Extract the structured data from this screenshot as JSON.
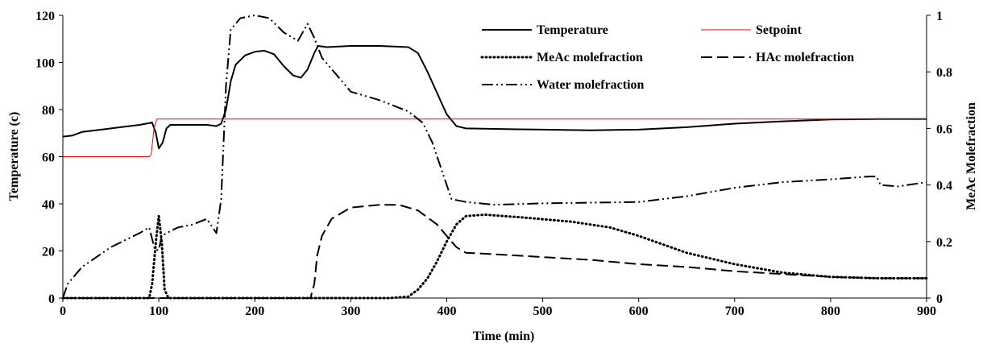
{
  "chart_data": {
    "type": "line",
    "xlabel": "Time (min)",
    "ylabel_left": "Temperature (c)",
    "ylabel_right": "MeAc Molefraction",
    "xlim": [
      0,
      900
    ],
    "ylim_left": [
      0,
      120
    ],
    "ylim_right": [
      0,
      1
    ],
    "x_ticks": [
      "0",
      "100",
      "200",
      "300",
      "400",
      "500",
      "600",
      "700",
      "800",
      "900"
    ],
    "y_left_ticks": [
      "0",
      "20",
      "40",
      "60",
      "80",
      "100",
      "120"
    ],
    "y_right_ticks": [
      "0",
      "0.2",
      "0.4",
      "0.6",
      "0.8",
      "1"
    ],
    "grid": false,
    "legend_position": "top-right",
    "series": [
      {
        "name": "Temperature",
        "axis": "left",
        "color": "#000000",
        "dash": "solid",
        "points": [
          [
            0,
            68.5
          ],
          [
            10,
            69
          ],
          [
            20,
            70.5
          ],
          [
            40,
            71.5
          ],
          [
            60,
            72.5
          ],
          [
            80,
            73.5
          ],
          [
            93,
            74.5
          ],
          [
            97,
            70
          ],
          [
            100,
            63.5
          ],
          [
            104,
            66
          ],
          [
            108,
            72
          ],
          [
            112,
            73.5
          ],
          [
            130,
            73.5
          ],
          [
            150,
            73.5
          ],
          [
            160,
            73
          ],
          [
            165,
            74
          ],
          [
            170,
            80
          ],
          [
            175,
            92
          ],
          [
            180,
            99
          ],
          [
            190,
            103
          ],
          [
            200,
            104.5
          ],
          [
            210,
            105
          ],
          [
            220,
            103.5
          ],
          [
            230,
            98.5
          ],
          [
            240,
            94.5
          ],
          [
            248,
            93.5
          ],
          [
            255,
            97
          ],
          [
            262,
            104
          ],
          [
            266,
            107
          ],
          [
            275,
            106.5
          ],
          [
            300,
            107
          ],
          [
            330,
            107
          ],
          [
            360,
            106.5
          ],
          [
            370,
            104
          ],
          [
            380,
            96
          ],
          [
            390,
            87
          ],
          [
            400,
            78
          ],
          [
            410,
            73
          ],
          [
            420,
            72
          ],
          [
            450,
            71.8
          ],
          [
            500,
            71.5
          ],
          [
            550,
            71.2
          ],
          [
            600,
            71.5
          ],
          [
            650,
            72.5
          ],
          [
            700,
            74
          ],
          [
            750,
            75
          ],
          [
            800,
            75.8
          ],
          [
            850,
            76
          ],
          [
            900,
            76
          ]
        ]
      },
      {
        "name": "Setpoint",
        "axis": "left",
        "color": "#ff0000",
        "dash": "solid",
        "points": [
          [
            0,
            60
          ],
          [
            90,
            60
          ],
          [
            92,
            61
          ],
          [
            95,
            72
          ],
          [
            98,
            76
          ],
          [
            900,
            76
          ]
        ]
      },
      {
        "name": "MeAc molefraction",
        "axis": "right",
        "color": "#000000",
        "dash": "dotted",
        "points": [
          [
            0,
            0
          ],
          [
            90,
            0
          ],
          [
            93,
            0.05
          ],
          [
            97,
            0.2
          ],
          [
            100,
            0.29
          ],
          [
            103,
            0.2
          ],
          [
            106,
            0.03
          ],
          [
            110,
            0
          ],
          [
            340,
            0
          ],
          [
            360,
            0.005
          ],
          [
            370,
            0.03
          ],
          [
            380,
            0.07
          ],
          [
            390,
            0.13
          ],
          [
            400,
            0.2
          ],
          [
            410,
            0.26
          ],
          [
            420,
            0.29
          ],
          [
            440,
            0.295
          ],
          [
            480,
            0.285
          ],
          [
            530,
            0.27
          ],
          [
            570,
            0.25
          ],
          [
            600,
            0.22
          ],
          [
            650,
            0.16
          ],
          [
            700,
            0.12
          ],
          [
            750,
            0.09
          ],
          [
            800,
            0.075
          ],
          [
            850,
            0.07
          ],
          [
            900,
            0.07
          ]
        ]
      },
      {
        "name": "HAc molefraction",
        "axis": "right",
        "color": "#000000",
        "dash": "dashed",
        "points": [
          [
            0,
            0
          ],
          [
            258,
            0
          ],
          [
            262,
            0.05
          ],
          [
            265,
            0.15
          ],
          [
            270,
            0.22
          ],
          [
            280,
            0.28
          ],
          [
            300,
            0.32
          ],
          [
            330,
            0.33
          ],
          [
            350,
            0.33
          ],
          [
            370,
            0.31
          ],
          [
            390,
            0.26
          ],
          [
            400,
            0.22
          ],
          [
            410,
            0.18
          ],
          [
            420,
            0.16
          ],
          [
            450,
            0.155
          ],
          [
            500,
            0.145
          ],
          [
            550,
            0.135
          ],
          [
            600,
            0.12
          ],
          [
            650,
            0.11
          ],
          [
            700,
            0.095
          ],
          [
            750,
            0.085
          ],
          [
            800,
            0.075
          ],
          [
            850,
            0.07
          ],
          [
            900,
            0.07
          ]
        ]
      },
      {
        "name": "Water molefraction",
        "axis": "right",
        "color": "#000000",
        "dash": "dashdot",
        "points": [
          [
            0,
            0
          ],
          [
            5,
            0.05
          ],
          [
            20,
            0.11
          ],
          [
            50,
            0.18
          ],
          [
            80,
            0.23
          ],
          [
            90,
            0.25
          ],
          [
            96,
            0.17
          ],
          [
            100,
            0.17
          ],
          [
            103,
            0.22
          ],
          [
            108,
            0.23
          ],
          [
            120,
            0.25
          ],
          [
            135,
            0.26
          ],
          [
            150,
            0.28
          ],
          [
            160,
            0.23
          ],
          [
            165,
            0.35
          ],
          [
            170,
            0.75
          ],
          [
            175,
            0.95
          ],
          [
            185,
            0.99
          ],
          [
            200,
            1.0
          ],
          [
            215,
            0.99
          ],
          [
            230,
            0.94
          ],
          [
            245,
            0.91
          ],
          [
            255,
            0.97
          ],
          [
            262,
            0.92
          ],
          [
            270,
            0.85
          ],
          [
            285,
            0.79
          ],
          [
            300,
            0.73
          ],
          [
            330,
            0.7
          ],
          [
            360,
            0.66
          ],
          [
            375,
            0.62
          ],
          [
            385,
            0.55
          ],
          [
            395,
            0.45
          ],
          [
            405,
            0.35
          ],
          [
            420,
            0.34
          ],
          [
            450,
            0.33
          ],
          [
            500,
            0.335
          ],
          [
            600,
            0.34
          ],
          [
            650,
            0.36
          ],
          [
            700,
            0.39
          ],
          [
            750,
            0.41
          ],
          [
            800,
            0.42
          ],
          [
            840,
            0.43
          ],
          [
            848,
            0.43
          ],
          [
            852,
            0.4
          ],
          [
            870,
            0.395
          ],
          [
            900,
            0.41
          ]
        ]
      }
    ]
  }
}
